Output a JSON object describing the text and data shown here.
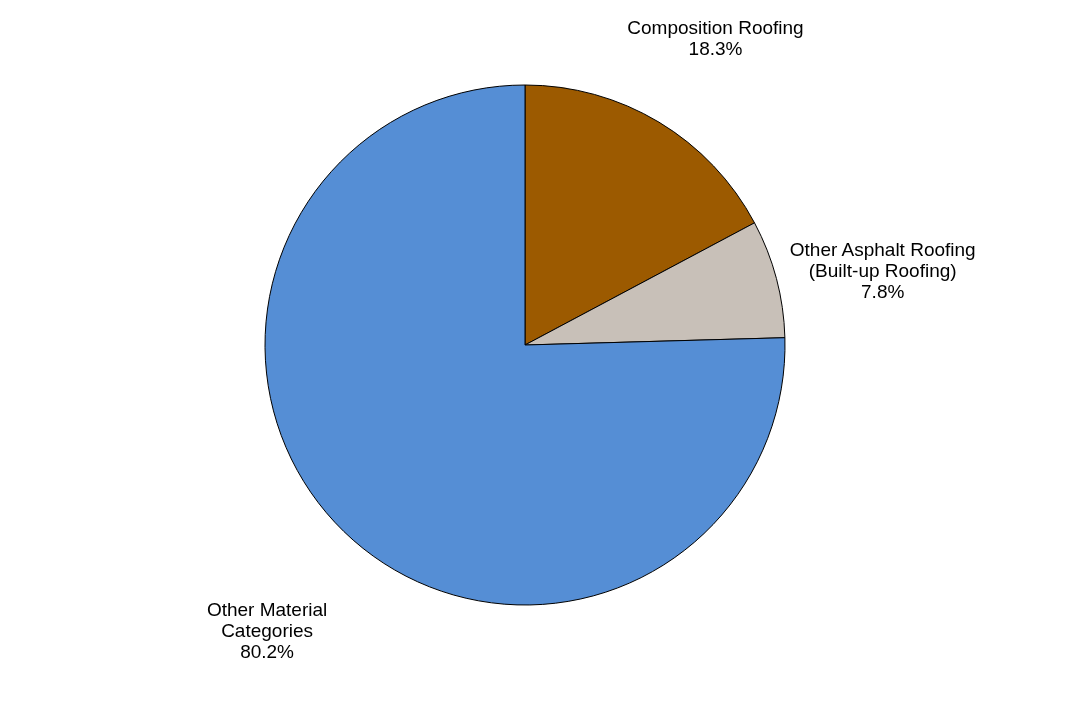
{
  "chart_data": {
    "type": "pie",
    "categories": [
      "Composition Roofing",
      "Other Asphalt Roofing\n(Built-up Roofing)",
      "Other Material\nCategories"
    ],
    "values": [
      18.3,
      7.8,
      80.2
    ],
    "value_labels": [
      "18.3%",
      "7.8%",
      "80.2%"
    ],
    "colors": [
      "#9c5a00",
      "#c8c0b8",
      "#558ed5"
    ],
    "legend": false
  }
}
